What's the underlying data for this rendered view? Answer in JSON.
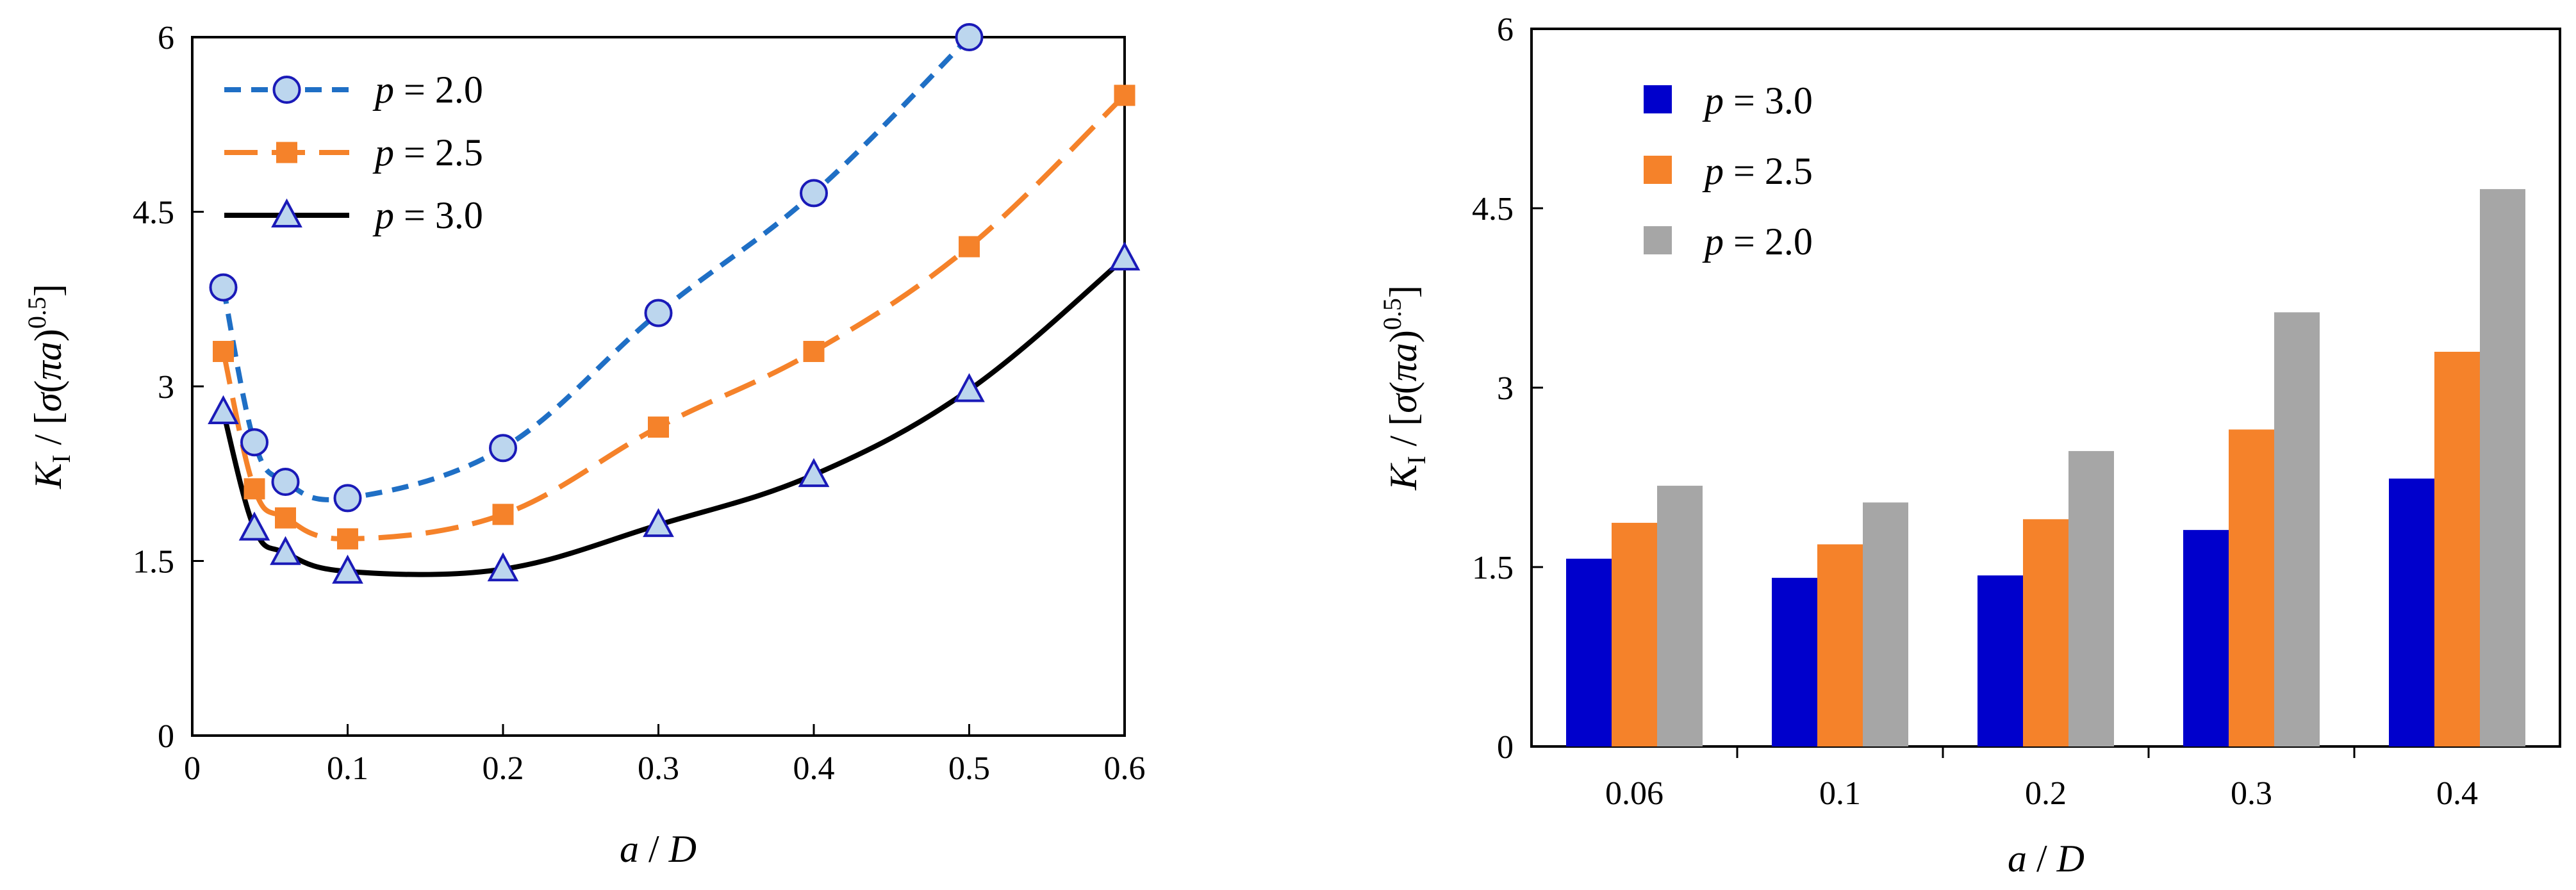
{
  "chart_data": [
    {
      "type": "line",
      "xlabel": {
        "var1": "a",
        "sep": " / ",
        "var2": "D"
      },
      "ylabel": {
        "K": "K",
        "sub": "I",
        "sep": " / [",
        "sigma": "σ",
        "lp": "(",
        "pi": "πa",
        "rp": ")",
        "exp": "0.5",
        "rb": "]"
      },
      "xlim": [
        0,
        0.6
      ],
      "ylim": [
        0,
        6
      ],
      "xticks": [
        "0",
        "0.1",
        "0.2",
        "0.3",
        "0.4",
        "0.5",
        "0.6"
      ],
      "yticks": [
        "0",
        "1.5",
        "3",
        "4.5",
        "6"
      ],
      "legend_position": "top-left",
      "grid": false,
      "series": [
        {
          "name": "p = 2.0",
          "name_var": "p",
          "name_rest": " = 2.0",
          "color": "#1f6fc5",
          "marker": "circle",
          "marker_fill": "#bcd6ee",
          "marker_stroke": "#1a1ab8",
          "dash": "dashed",
          "x": [
            0.02,
            0.04,
            0.06,
            0.1,
            0.2,
            0.3,
            0.4,
            0.5
          ],
          "y": [
            3.85,
            2.52,
            2.18,
            2.04,
            2.47,
            3.63,
            4.66,
            6.0
          ]
        },
        {
          "name": "p = 2.5",
          "name_var": "p",
          "name_rest": " = 2.5",
          "color": "#f5822a",
          "marker": "square",
          "marker_fill": "#f5822a",
          "marker_stroke": "#f5822a",
          "dash": "longdash",
          "x": [
            0.02,
            0.04,
            0.06,
            0.1,
            0.2,
            0.3,
            0.4,
            0.5,
            0.6
          ],
          "y": [
            3.3,
            2.12,
            1.87,
            1.69,
            1.9,
            2.65,
            3.3,
            4.2,
            5.5
          ]
        },
        {
          "name": "p = 3.0",
          "name_var": "p",
          "name_rest": " = 3.0",
          "color": "#000000",
          "marker": "triangle",
          "marker_fill": "#bcd6ee",
          "marker_stroke": "#1a1ab8",
          "dash": "solid",
          "x": [
            0.02,
            0.04,
            0.06,
            0.1,
            0.2,
            0.3,
            0.4,
            0.5,
            0.6
          ],
          "y": [
            2.78,
            1.78,
            1.57,
            1.41,
            1.43,
            1.81,
            2.24,
            2.97,
            4.1
          ]
        }
      ]
    },
    {
      "type": "bar",
      "xlabel": {
        "var1": "a",
        "sep": " / ",
        "var2": "D"
      },
      "ylabel": {
        "K": "K",
        "sub": "I",
        "sep": " / [",
        "sigma": "σ",
        "lp": "(",
        "pi": "πa",
        "rp": ")",
        "exp": "0.5",
        "rb": "]"
      },
      "ylim": [
        0,
        6
      ],
      "yticks": [
        "0",
        "1.5",
        "3",
        "4.5",
        "6"
      ],
      "categories": [
        "0.06",
        "0.1",
        "0.2",
        "0.3",
        "0.4"
      ],
      "legend_position": "top-left",
      "grid": false,
      "series": [
        {
          "name": "p = 3.0",
          "name_var": "p",
          "name_rest": " = 3.0",
          "color": "#0000cc",
          "values": [
            1.57,
            1.41,
            1.43,
            1.81,
            2.24
          ]
        },
        {
          "name": "p = 2.5",
          "name_var": "p",
          "name_rest": " = 2.5",
          "color": "#f5822a",
          "values": [
            1.87,
            1.69,
            1.9,
            2.65,
            3.3
          ]
        },
        {
          "name": "p = 2.0",
          "name_var": "p",
          "name_rest": " = 2.0",
          "color": "#a6a6a6",
          "values": [
            2.18,
            2.04,
            2.47,
            3.63,
            4.66
          ]
        }
      ]
    }
  ]
}
